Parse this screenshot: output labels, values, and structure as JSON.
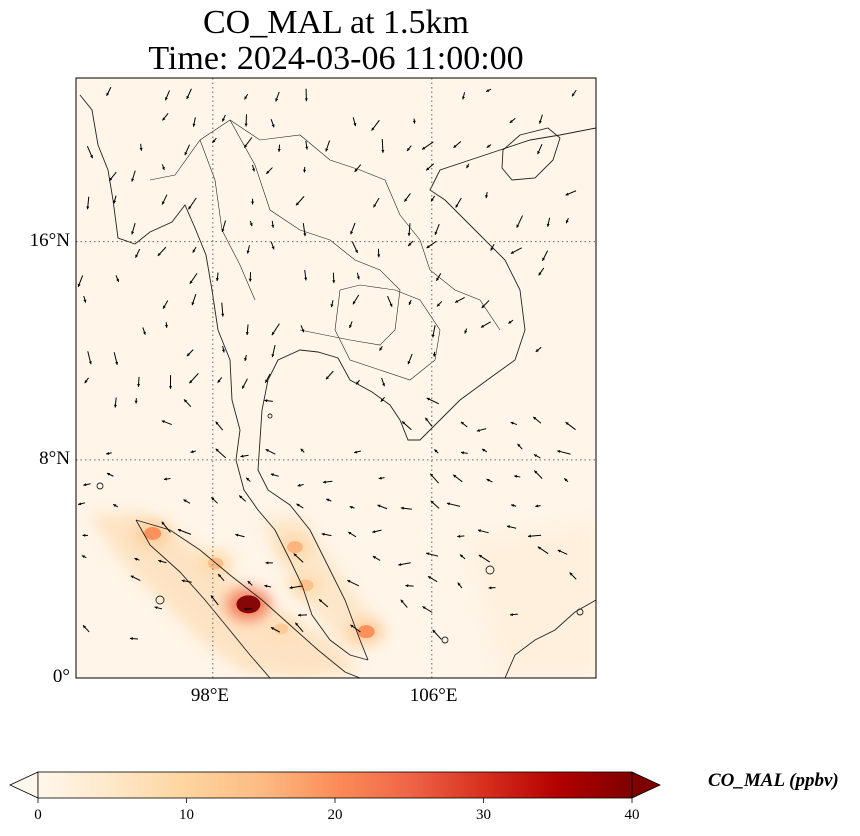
{
  "title": {
    "line1": "CO_MAL at 1.5km",
    "line2": "Time: 2024-03-06 11:00:00"
  },
  "map": {
    "lon_range": [
      93,
      112
    ],
    "lat_range": [
      0,
      22
    ],
    "projection": "PlateCarree",
    "gridlines": true,
    "lon_ticks": [
      {
        "value": 98,
        "label": "98°E"
      },
      {
        "value": 106,
        "label": "106°E"
      }
    ],
    "lat_ticks": [
      {
        "value": 16,
        "label": "16°N"
      },
      {
        "value": 8,
        "label": "8°N"
      },
      {
        "value": 0,
        "label": "0°"
      }
    ],
    "field": "CO_MAL",
    "wind_vectors": true,
    "hotspots": [
      {
        "lon": 99.3,
        "lat": 2.7,
        "value": 40
      },
      {
        "lon": 95.8,
        "lat": 5.3,
        "value": 20
      },
      {
        "lon": 103.6,
        "lat": 1.7,
        "value": 20
      },
      {
        "lon": 101.0,
        "lat": 4.8,
        "value": 16
      },
      {
        "lon": 101.4,
        "lat": 3.4,
        "value": 14
      },
      {
        "lon": 98.1,
        "lat": 4.2,
        "value": 15
      },
      {
        "lon": 100.5,
        "lat": 1.8,
        "value": 12
      }
    ]
  },
  "colorbar": {
    "title": "CO_MAL (ppbv)",
    "min": 0,
    "max": 40,
    "extend": "both",
    "colormap": "OrRd",
    "colors": [
      "#fff7ec",
      "#fee8c8",
      "#fdd49e",
      "#fdbb84",
      "#fc8d59",
      "#ef6548",
      "#d7301f",
      "#b30000",
      "#7f0000"
    ],
    "ticks": [
      "0",
      "10",
      "20",
      "30",
      "40"
    ]
  }
}
